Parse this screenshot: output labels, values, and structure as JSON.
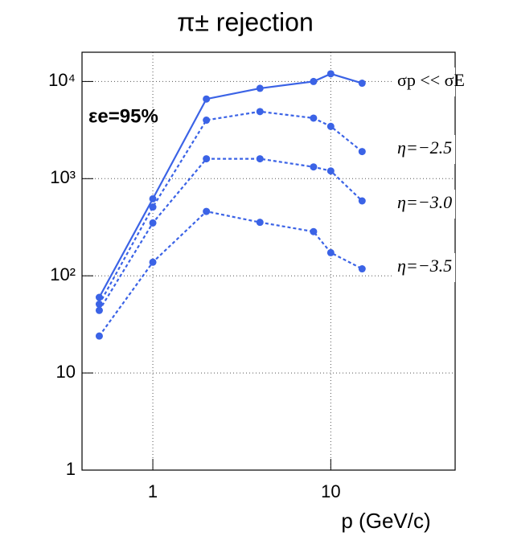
{
  "chart_data": {
    "type": "line",
    "title": "π± rejection",
    "x_label": "p (GeV/c)",
    "annotation": "εe=95%",
    "x": [
      0.5,
      1,
      2,
      4,
      8,
      10,
      15
    ],
    "xscale": "log",
    "yscale": "log",
    "grid": true,
    "xlim": [
      0.4,
      50
    ],
    "xticks": [
      1,
      10
    ],
    "ylim": [
      1,
      20000
    ],
    "yticks": [
      1,
      10,
      {
        "value": 100,
        "label": "10²"
      },
      {
        "value": 1000,
        "label": "10³"
      },
      {
        "value": 10000,
        "label": "10⁴"
      }
    ],
    "series": [
      {
        "name": "σp << σE",
        "color": "#3b63e6",
        "dash": false,
        "values": [
          60,
          620,
          6600,
          8500,
          10000,
          12000,
          9600
        ]
      },
      {
        "name": "η=−2.5",
        "color": "#3b63e6",
        "dash": true,
        "values": [
          51,
          510,
          4000,
          4900,
          4200,
          3450,
          1900
        ]
      },
      {
        "name": "η=−3.0",
        "color": "#3b63e6",
        "dash": true,
        "values": [
          44,
          350,
          1600,
          1600,
          1320,
          1200,
          590
        ]
      },
      {
        "name": "η=−3.5",
        "color": "#3b63e6",
        "dash": true,
        "values": [
          24,
          138,
          460,
          355,
          285,
          173,
          118
        ]
      }
    ]
  }
}
